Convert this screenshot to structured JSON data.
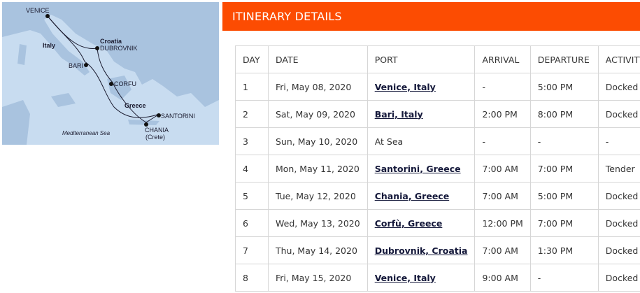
{
  "map": {
    "labels": {
      "venice": "VENICE",
      "italy": "Italy",
      "croatia": "Croatia",
      "dubrovnik": "DUBROVNIK",
      "bari": "BARI",
      "corfu": "CORFU",
      "greece": "Greece",
      "santorini": "SANTORINI",
      "chania": "CHANIA",
      "crete": "(Crete)",
      "sea": "Mediterranean Sea"
    },
    "colors": {
      "sea": "#c8dcf0",
      "land": "#a9c3df",
      "route": "#1a1a2e"
    }
  },
  "panel": {
    "title": "ITINERARY DETAILS",
    "accent": "#fc4c02"
  },
  "table": {
    "headers": [
      "DAY",
      "DATE",
      "PORT",
      "ARRIVAL",
      "DEPARTURE",
      "ACTIVITY*"
    ],
    "rows": [
      {
        "day": "1",
        "date": "Fri, May 08, 2020",
        "port": "Venice, Italy",
        "link": true,
        "arrival": "-",
        "departure": "5:00 PM",
        "activity": "Docked"
      },
      {
        "day": "2",
        "date": "Sat, May 09, 2020",
        "port": "Bari, Italy",
        "link": true,
        "arrival": "2:00 PM",
        "departure": "8:00 PM",
        "activity": "Docked"
      },
      {
        "day": "3",
        "date": "Sun, May 10, 2020",
        "port": "At Sea",
        "link": false,
        "arrival": "-",
        "departure": "-",
        "activity": "-"
      },
      {
        "day": "4",
        "date": "Mon, May 11, 2020",
        "port": "Santorini, Greece",
        "link": true,
        "arrival": "7:00 AM",
        "departure": "7:00 PM",
        "activity": "Tender"
      },
      {
        "day": "5",
        "date": "Tue, May 12, 2020",
        "port": "Chania, Greece",
        "link": true,
        "arrival": "7:00 AM",
        "departure": "5:00 PM",
        "activity": "Docked"
      },
      {
        "day": "6",
        "date": "Wed, May 13, 2020",
        "port": "Corfù, Greece",
        "link": true,
        "arrival": "12:00 PM",
        "departure": "7:00 PM",
        "activity": "Docked"
      },
      {
        "day": "7",
        "date": "Thu, May 14, 2020",
        "port": "Dubrovnik, Croatia",
        "link": true,
        "arrival": "7:00 AM",
        "departure": "1:30 PM",
        "activity": "Docked"
      },
      {
        "day": "8",
        "date": "Fri, May 15, 2020",
        "port": "Venice, Italy",
        "link": true,
        "arrival": "9:00 AM",
        "departure": "-",
        "activity": "Docked"
      }
    ]
  }
}
